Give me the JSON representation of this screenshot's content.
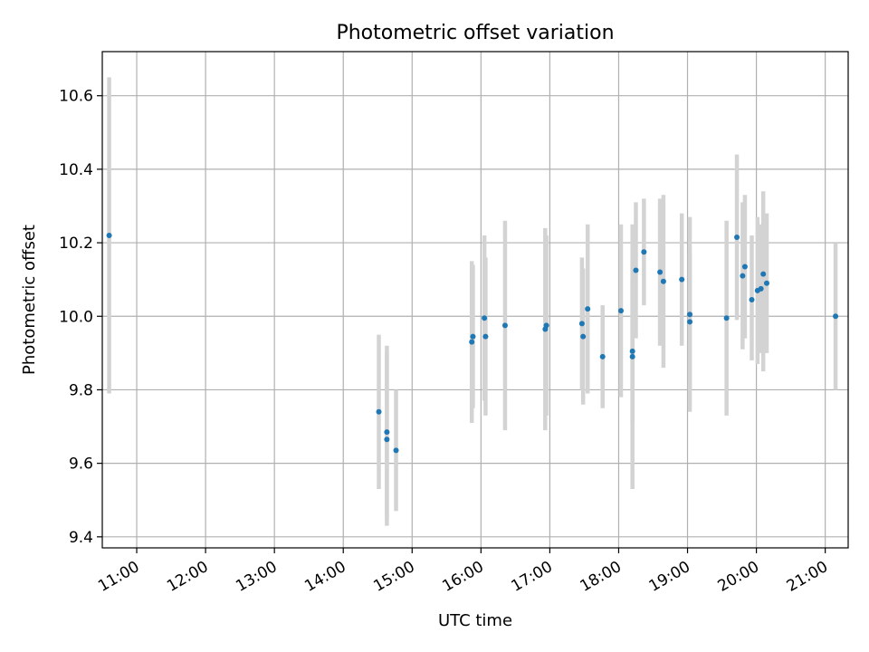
{
  "chart_data": {
    "type": "scatter",
    "title": "Photometric offset variation",
    "xlabel": "UTC time",
    "ylabel": "Photometric offset",
    "x_ticks": [
      "11:00",
      "12:00",
      "13:00",
      "14:00",
      "15:00",
      "16:00",
      "17:00",
      "18:00",
      "19:00",
      "20:00",
      "21:00"
    ],
    "y_ticks": [
      9.4,
      9.6,
      9.8,
      10.0,
      10.2,
      10.4,
      10.6
    ],
    "xlim": [
      "10:30",
      "21:20"
    ],
    "ylim": [
      9.37,
      10.72
    ],
    "grid": true,
    "marker_color": "#1f77b4",
    "errorbar_color": "#d3d3d3",
    "points": [
      {
        "x": "10:36",
        "y": 10.22,
        "err_low": 9.79,
        "err_high": 10.65
      },
      {
        "x": "14:31",
        "y": 9.74,
        "err_low": 9.53,
        "err_high": 9.95
      },
      {
        "x": "14:38",
        "y": 9.685,
        "err_low": 9.45,
        "err_high": 9.92
      },
      {
        "x": "14:38",
        "y": 9.665,
        "err_low": 9.43,
        "err_high": 9.9
      },
      {
        "x": "14:46",
        "y": 9.635,
        "err_low": 9.47,
        "err_high": 9.8
      },
      {
        "x": "15:52",
        "y": 9.93,
        "err_low": 9.71,
        "err_high": 10.15
      },
      {
        "x": "15:53",
        "y": 9.945,
        "err_low": 9.75,
        "err_high": 10.14
      },
      {
        "x": "16:03",
        "y": 9.995,
        "err_low": 9.77,
        "err_high": 10.22
      },
      {
        "x": "16:04",
        "y": 9.945,
        "err_low": 9.73,
        "err_high": 10.16
      },
      {
        "x": "16:21",
        "y": 9.975,
        "err_low": 9.69,
        "err_high": 10.26
      },
      {
        "x": "16:56",
        "y": 9.965,
        "err_low": 9.69,
        "err_high": 10.24
      },
      {
        "x": "16:57",
        "y": 9.975,
        "err_low": 9.73,
        "err_high": 10.22
      },
      {
        "x": "17:28",
        "y": 9.98,
        "err_low": 9.8,
        "err_high": 10.16
      },
      {
        "x": "17:29",
        "y": 9.945,
        "err_low": 9.76,
        "err_high": 10.13
      },
      {
        "x": "17:33",
        "y": 10.02,
        "err_low": 9.79,
        "err_high": 10.25
      },
      {
        "x": "17:46",
        "y": 9.89,
        "err_low": 9.75,
        "err_high": 10.03
      },
      {
        "x": "18:02",
        "y": 10.015,
        "err_low": 9.78,
        "err_high": 10.25
      },
      {
        "x": "18:12",
        "y": 9.905,
        "err_low": 9.71,
        "err_high": 10.1
      },
      {
        "x": "18:12",
        "y": 9.89,
        "err_low": 9.53,
        "err_high": 10.25
      },
      {
        "x": "18:15",
        "y": 10.125,
        "err_low": 9.94,
        "err_high": 10.31
      },
      {
        "x": "18:22",
        "y": 10.175,
        "err_low": 10.03,
        "err_high": 10.32
      },
      {
        "x": "18:36",
        "y": 10.12,
        "err_low": 9.92,
        "err_high": 10.32
      },
      {
        "x": "18:39",
        "y": 10.095,
        "err_low": 9.86,
        "err_high": 10.33
      },
      {
        "x": "18:55",
        "y": 10.1,
        "err_low": 9.92,
        "err_high": 10.28
      },
      {
        "x": "19:02",
        "y": 10.005,
        "err_low": 9.74,
        "err_high": 10.27
      },
      {
        "x": "19:02",
        "y": 9.985,
        "err_low": 9.8,
        "err_high": 10.17
      },
      {
        "x": "19:34",
        "y": 9.995,
        "err_low": 9.73,
        "err_high": 10.26
      },
      {
        "x": "19:43",
        "y": 10.215,
        "err_low": 9.99,
        "err_high": 10.44
      },
      {
        "x": "19:48",
        "y": 10.11,
        "err_low": 9.91,
        "err_high": 10.31
      },
      {
        "x": "19:50",
        "y": 10.135,
        "err_low": 9.94,
        "err_high": 10.33
      },
      {
        "x": "19:56",
        "y": 10.045,
        "err_low": 9.88,
        "err_high": 10.22
      },
      {
        "x": "20:01",
        "y": 10.07,
        "err_low": 9.87,
        "err_high": 10.27
      },
      {
        "x": "20:04",
        "y": 10.075,
        "err_low": 9.9,
        "err_high": 10.25
      },
      {
        "x": "20:06",
        "y": 10.115,
        "err_low": 9.85,
        "err_high": 10.34
      },
      {
        "x": "20:09",
        "y": 10.09,
        "err_low": 9.9,
        "err_high": 10.28
      },
      {
        "x": "21:09",
        "y": 10.0,
        "err_low": 9.8,
        "err_high": 10.2
      }
    ]
  }
}
